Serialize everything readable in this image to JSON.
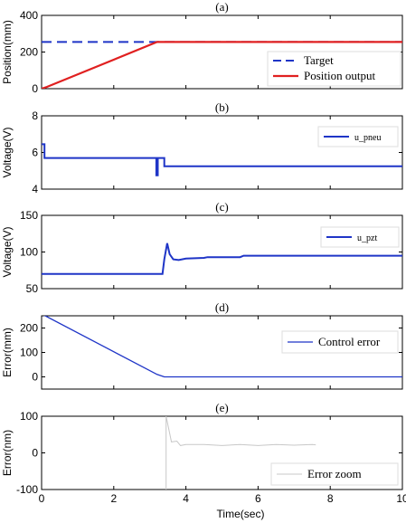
{
  "figure": {
    "xlabel": "Time(sec)"
  },
  "chart_data": [
    {
      "type": "line",
      "panel_label": "(a)",
      "ylabel": "Position(mm)",
      "xlim": [
        0,
        10
      ],
      "ylim": [
        0,
        400
      ],
      "xticks": [],
      "yticks": [
        0,
        200,
        400
      ],
      "grid": false,
      "legend": {
        "placement": "right",
        "entries": [
          "Target",
          "Position output"
        ]
      },
      "series": [
        {
          "name": "Target",
          "color": "#1f35c7",
          "style": "dashed",
          "width": 2,
          "x": [
            0,
            3.2,
            3.2,
            10
          ],
          "y": [
            255,
            255,
            255,
            255
          ]
        },
        {
          "name": "Position output",
          "color": "#e02020",
          "style": "solid",
          "width": 2.2,
          "x": [
            0,
            0.15,
            3.2,
            10
          ],
          "y": [
            0,
            10,
            255,
            255
          ]
        }
      ]
    },
    {
      "type": "line",
      "panel_label": "(b)",
      "ylabel": "Voltage(V)",
      "xlim": [
        0,
        10
      ],
      "ylim": [
        4,
        8
      ],
      "xticks": [],
      "yticks": [
        4,
        6,
        8
      ],
      "grid": false,
      "legend": {
        "placement": "top-right",
        "entries": [
          "u_pneu"
        ]
      },
      "series": [
        {
          "name": "u_pneu",
          "color": "#1f35c7",
          "style": "solid",
          "width": 2,
          "x": [
            0,
            0.08,
            0.08,
            3.18,
            3.18,
            3.22,
            3.22,
            3.4,
            3.4,
            10
          ],
          "y": [
            6.45,
            6.45,
            5.7,
            5.7,
            4.75,
            4.75,
            5.7,
            5.7,
            5.25,
            5.25
          ]
        }
      ]
    },
    {
      "type": "line",
      "panel_label": "(c)",
      "ylabel": "Voltage(V)",
      "xlim": [
        0,
        10
      ],
      "ylim": [
        50,
        150
      ],
      "xticks": [],
      "yticks": [
        50,
        100,
        150
      ],
      "grid": false,
      "legend": {
        "placement": "top-right",
        "entries": [
          "u_pzt"
        ]
      },
      "series": [
        {
          "name": "u_pzt",
          "color": "#1f35c7",
          "style": "solid",
          "width": 2,
          "x": [
            0,
            3.35,
            3.4,
            3.48,
            3.55,
            3.65,
            3.8,
            4.0,
            4.5,
            4.6,
            5.5,
            5.6,
            10
          ],
          "y": [
            70,
            70,
            90,
            112,
            97,
            90,
            89,
            91,
            92,
            93,
            93,
            95,
            95
          ]
        }
      ]
    },
    {
      "type": "line",
      "panel_label": "(d)",
      "ylabel": "Error(mm)",
      "xlim": [
        0,
        10
      ],
      "ylim": [
        -50,
        250
      ],
      "xticks": [],
      "yticks": [
        0,
        100,
        200
      ],
      "grid": false,
      "legend": {
        "placement": "right",
        "entries": [
          "Control error"
        ]
      },
      "series": [
        {
          "name": "Control error",
          "color": "#1f35c7",
          "style": "solid",
          "width": 1.3,
          "x": [
            0,
            0.1,
            3.2,
            3.4,
            10
          ],
          "y": [
            255,
            250,
            10,
            0,
            0
          ]
        }
      ]
    },
    {
      "type": "line",
      "panel_label": "(e)",
      "ylabel": "Error(nm)",
      "xlim": [
        0,
        10
      ],
      "ylim": [
        -100,
        100
      ],
      "xticks": [
        0,
        2,
        4,
        6,
        8,
        10
      ],
      "yticks": [
        -100,
        0,
        100
      ],
      "grid": false,
      "legend": {
        "placement": "bottom-right",
        "entries": [
          "Error zoom"
        ]
      },
      "series": [
        {
          "name": "Error zoom",
          "color": "#c8c8c8",
          "style": "solid",
          "width": 1,
          "x": [
            3.45,
            3.45,
            3.6,
            3.75,
            3.85,
            4.0,
            4.5,
            5.0,
            5.5,
            6.0,
            6.5,
            7.0,
            7.5,
            7.6
          ],
          "y": [
            -100,
            100,
            30,
            32,
            20,
            23,
            23,
            20,
            23,
            20,
            23,
            21,
            23,
            22
          ]
        }
      ]
    }
  ]
}
